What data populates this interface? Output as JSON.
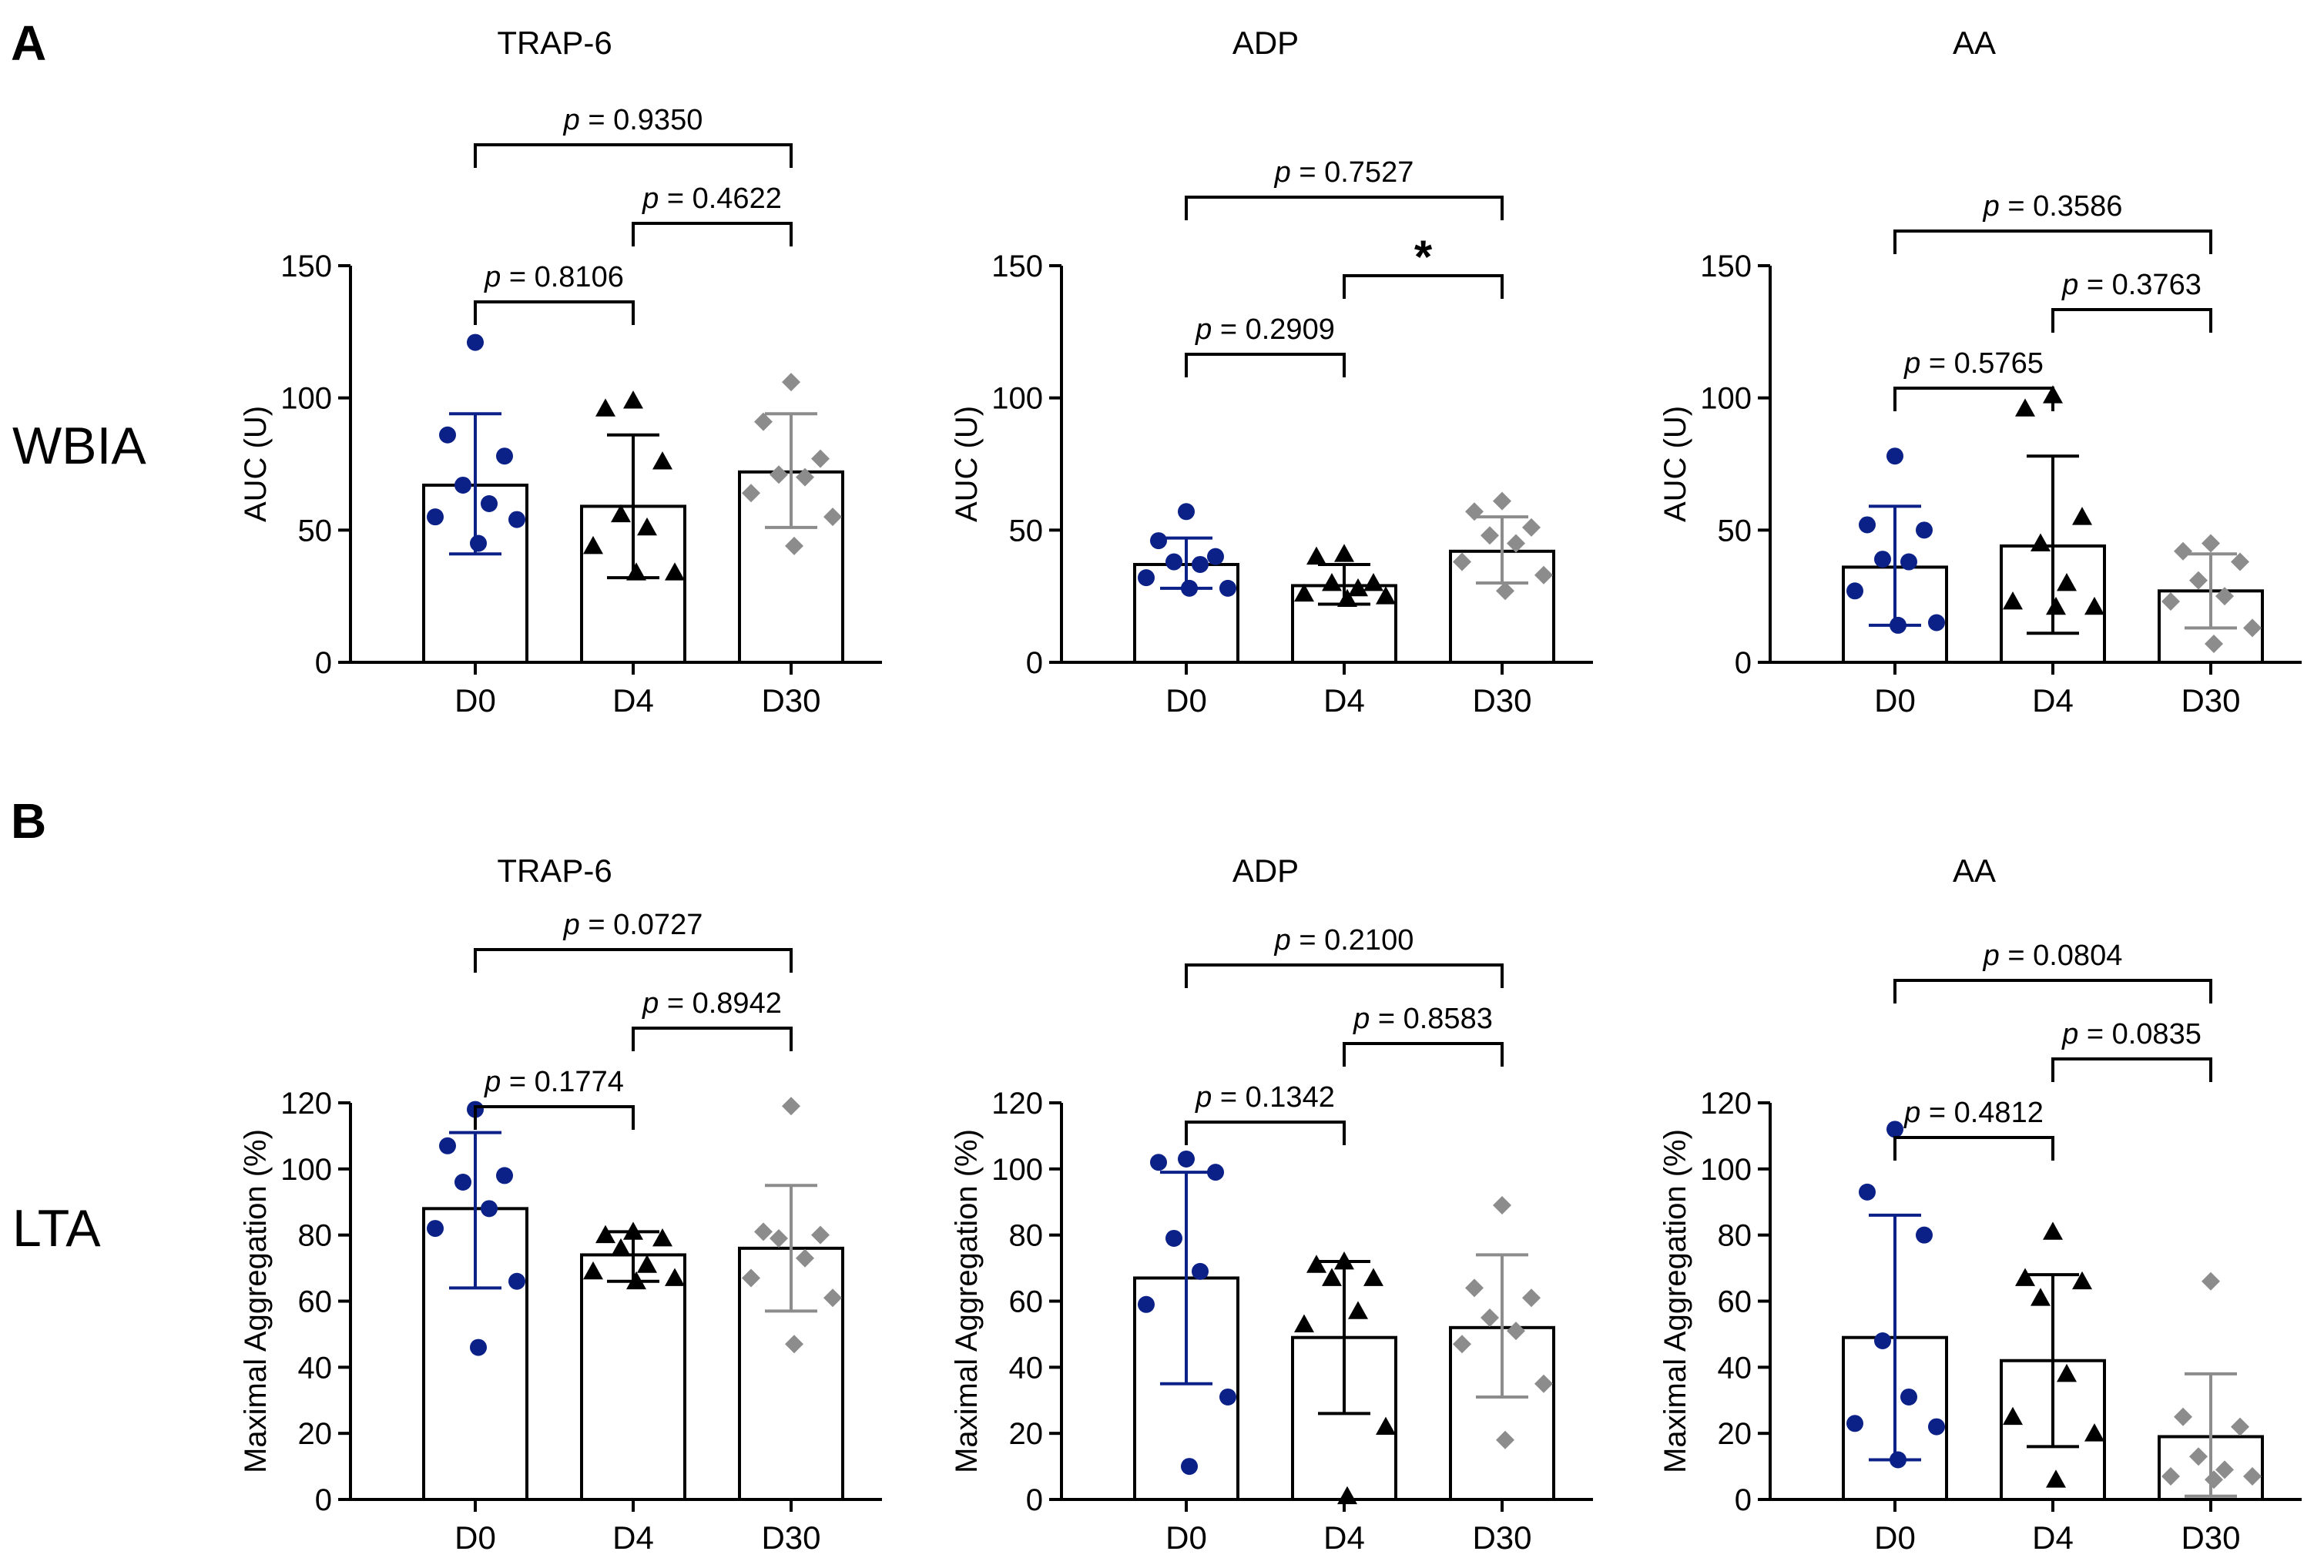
{
  "colors": {
    "D0": "#0b2188",
    "D4": "#000000",
    "D30": "#8c8c8c",
    "axis": "#000000",
    "bar_fill": "#ffffff"
  },
  "panels": [
    {
      "label": "A",
      "row_label": "WBIA"
    },
    {
      "label": "B",
      "row_label": "LTA"
    }
  ],
  "chart_data": [
    {
      "type": "bar",
      "panel": "A",
      "row": "WBIA",
      "col": 0,
      "title": "TRAP-6",
      "ylabel": "AUC (U)",
      "ylim": [
        0,
        150
      ],
      "yticks": [
        0,
        50,
        100,
        150
      ],
      "categories": [
        "D0",
        "D4",
        "D30"
      ],
      "means": [
        67,
        59,
        72
      ],
      "err_low": [
        41,
        32,
        51
      ],
      "err_high": [
        94,
        86,
        94
      ],
      "points": [
        {
          "marker": "circle",
          "values": [
            121,
            86,
            78,
            67,
            60,
            55,
            54,
            45
          ]
        },
        {
          "marker": "triangle",
          "values": [
            99,
            96,
            76,
            56,
            51,
            44,
            34,
            34
          ]
        },
        {
          "marker": "diamond",
          "values": [
            106,
            91,
            77,
            71,
            70,
            64,
            55,
            44
          ]
        }
      ],
      "comparisons": [
        {
          "from": 0,
          "to": 1,
          "level": 0,
          "label": "p = 0.8106"
        },
        {
          "from": 1,
          "to": 2,
          "level": 1,
          "label": "p = 0.4622"
        },
        {
          "from": 0,
          "to": 2,
          "level": 2,
          "label": "p = 0.9350"
        }
      ]
    },
    {
      "type": "bar",
      "panel": "A",
      "row": "WBIA",
      "col": 1,
      "title": "ADP",
      "ylabel": "AUC (U)",
      "ylim": [
        0,
        150
      ],
      "yticks": [
        0,
        50,
        100,
        150
      ],
      "categories": [
        "D0",
        "D4",
        "D30"
      ],
      "means": [
        37,
        29,
        42
      ],
      "err_low": [
        28,
        22,
        30
      ],
      "err_high": [
        47,
        37,
        55
      ],
      "points": [
        {
          "marker": "circle",
          "values": [
            57,
            46,
            40,
            38,
            37,
            32,
            28,
            28
          ]
        },
        {
          "marker": "triangle",
          "values": [
            41,
            40,
            30,
            30,
            28,
            26,
            25,
            24
          ]
        },
        {
          "marker": "diamond",
          "values": [
            61,
            57,
            51,
            48,
            45,
            38,
            33,
            27
          ]
        }
      ],
      "comparisons": [
        {
          "from": 0,
          "to": 1,
          "level": 0,
          "label": "p = 0.2909"
        },
        {
          "from": 1,
          "to": 2,
          "level": 1,
          "label": "*"
        },
        {
          "from": 0,
          "to": 2,
          "level": 2,
          "label": "p = 0.7527"
        }
      ]
    },
    {
      "type": "bar",
      "panel": "A",
      "row": "WBIA",
      "col": 2,
      "title": "AA",
      "ylabel": "AUC (U)",
      "ylim": [
        0,
        150
      ],
      "yticks": [
        0,
        50,
        100,
        150
      ],
      "categories": [
        "D0",
        "D4",
        "D30"
      ],
      "means": [
        36,
        44,
        27
      ],
      "err_low": [
        14,
        11,
        13
      ],
      "err_high": [
        59,
        78,
        41
      ],
      "points": [
        {
          "marker": "circle",
          "values": [
            78,
            52,
            50,
            39,
            38,
            27,
            15,
            14
          ]
        },
        {
          "marker": "triangle",
          "values": [
            101,
            96,
            55,
            45,
            30,
            23,
            21,
            21
          ]
        },
        {
          "marker": "diamond",
          "values": [
            45,
            42,
            38,
            31,
            25,
            23,
            13,
            7
          ]
        }
      ],
      "comparisons": [
        {
          "from": 0,
          "to": 1,
          "level": 0,
          "label": "p = 0.5765"
        },
        {
          "from": 1,
          "to": 2,
          "level": 1,
          "label": "p = 0.3763"
        },
        {
          "from": 0,
          "to": 2,
          "level": 2,
          "label": "p = 0.3586"
        }
      ]
    },
    {
      "type": "bar",
      "panel": "B",
      "row": "LTA",
      "col": 0,
      "title": "TRAP-6",
      "ylabel": "Maximal Aggregation (%)",
      "ylim": [
        0,
        120
      ],
      "yticks": [
        0,
        20,
        40,
        60,
        80,
        100,
        120
      ],
      "categories": [
        "D0",
        "D4",
        "D30"
      ],
      "means": [
        88,
        74,
        76
      ],
      "err_low": [
        64,
        66,
        57
      ],
      "err_high": [
        111,
        81,
        95
      ],
      "points": [
        {
          "marker": "circle",
          "values": [
            118,
            107,
            98,
            96,
            88,
            82,
            66,
            46
          ]
        },
        {
          "marker": "triangle",
          "values": [
            81,
            80,
            79,
            76,
            71,
            69,
            67,
            66
          ]
        },
        {
          "marker": "diamond",
          "values": [
            119,
            81,
            80,
            79,
            73,
            67,
            61,
            47
          ]
        }
      ],
      "comparisons": [
        {
          "from": 0,
          "to": 1,
          "level": 0,
          "label": "p = 0.1774"
        },
        {
          "from": 1,
          "to": 2,
          "level": 1,
          "label": "p = 0.8942"
        },
        {
          "from": 0,
          "to": 2,
          "level": 2,
          "label": "p = 0.0727"
        }
      ]
    },
    {
      "type": "bar",
      "panel": "B",
      "row": "LTA",
      "col": 1,
      "title": "ADP",
      "ylabel": "Maximal Aggregation (%)",
      "ylim": [
        0,
        120
      ],
      "yticks": [
        0,
        20,
        40,
        60,
        80,
        100,
        120
      ],
      "categories": [
        "D0",
        "D4",
        "D30"
      ],
      "means": [
        67,
        49,
        52
      ],
      "err_low": [
        35,
        26,
        31
      ],
      "err_high": [
        99,
        72,
        74
      ],
      "points": [
        {
          "marker": "circle",
          "values": [
            103,
            102,
            99,
            79,
            69,
            59,
            31,
            10
          ]
        },
        {
          "marker": "triangle",
          "values": [
            72,
            71,
            67,
            67,
            57,
            53,
            22,
            1
          ]
        },
        {
          "marker": "diamond",
          "values": [
            89,
            64,
            61,
            55,
            51,
            47,
            35,
            18
          ]
        }
      ],
      "comparisons": [
        {
          "from": 0,
          "to": 1,
          "level": 0,
          "label": "p = 0.1342"
        },
        {
          "from": 1,
          "to": 2,
          "level": 1,
          "label": "p = 0.8583"
        },
        {
          "from": 0,
          "to": 2,
          "level": 2,
          "label": "p = 0.2100"
        }
      ]
    },
    {
      "type": "bar",
      "panel": "B",
      "row": "LTA",
      "col": 2,
      "title": "AA",
      "ylabel": "Maximal Aggregation (%)",
      "ylim": [
        0,
        120
      ],
      "yticks": [
        0,
        20,
        40,
        60,
        80,
        100,
        120
      ],
      "categories": [
        "D0",
        "D4",
        "D30"
      ],
      "means": [
        49,
        42,
        19
      ],
      "err_low": [
        12,
        16,
        1
      ],
      "err_high": [
        86,
        68,
        38
      ],
      "points": [
        {
          "marker": "circle",
          "values": [
            112,
            93,
            80,
            48,
            31,
            23,
            22,
            12
          ]
        },
        {
          "marker": "triangle",
          "values": [
            81,
            67,
            66,
            61,
            38,
            25,
            20,
            6
          ]
        },
        {
          "marker": "diamond",
          "values": [
            66,
            25,
            22,
            13,
            9,
            7,
            7,
            6
          ]
        }
      ],
      "comparisons": [
        {
          "from": 0,
          "to": 1,
          "level": 0,
          "label": "p = 0.4812"
        },
        {
          "from": 1,
          "to": 2,
          "level": 1,
          "label": "p = 0.0835"
        },
        {
          "from": 0,
          "to": 2,
          "level": 2,
          "label": "p = 0.0804"
        }
      ]
    }
  ]
}
